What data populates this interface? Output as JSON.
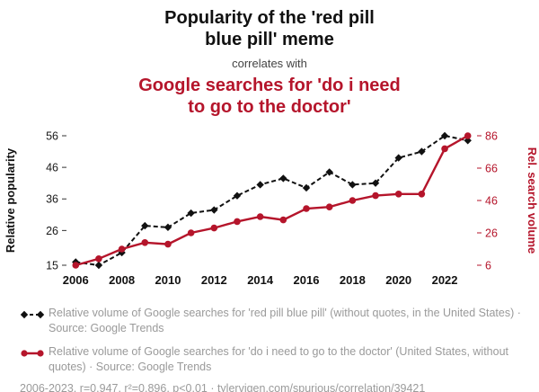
{
  "header": {
    "title": "Popularity of the 'red pill blue pill' meme",
    "subtitle": "correlates with",
    "title2": "Google searches for 'do i need to go to the doctor'"
  },
  "chart_data": {
    "type": "line",
    "x": [
      2006,
      2007,
      2008,
      2009,
      2010,
      2011,
      2012,
      2013,
      2014,
      2015,
      2016,
      2017,
      2018,
      2019,
      2020,
      2021,
      2022,
      2023
    ],
    "x_ticks": [
      2006,
      2008,
      2010,
      2012,
      2014,
      2016,
      2018,
      2020,
      2022
    ],
    "left_axis": {
      "label": "Relative popularity",
      "ticks": [
        15,
        26,
        36,
        46,
        56
      ],
      "range": [
        15,
        56
      ]
    },
    "right_axis": {
      "label": "Rel. search volume",
      "ticks": [
        6,
        26,
        46,
        66,
        86
      ],
      "range": [
        6,
        86
      ]
    },
    "grid": false,
    "legend_position": "bottom",
    "series": [
      {
        "name": "red pill blue pill",
        "axis": "left",
        "color": "#111111",
        "style": "dashed",
        "marker": "diamond",
        "values": [
          16,
          15,
          19,
          27.5,
          27,
          31.5,
          32.5,
          37,
          40.5,
          42.5,
          39.5,
          44.5,
          40.5,
          41,
          49,
          51,
          56,
          54.5
        ]
      },
      {
        "name": "do i need to go to the doctor",
        "axis": "right",
        "color": "#b5152b",
        "style": "solid",
        "marker": "circle",
        "values": [
          6,
          10,
          16,
          20,
          19,
          26,
          29,
          33,
          36,
          34,
          41,
          42,
          46,
          49,
          50,
          50,
          78,
          86
        ]
      }
    ]
  },
  "legend": [
    {
      "text": "Relative volume of Google searches for 'red pill blue pill' (without quotes, in the United States) · Source: Google Trends"
    },
    {
      "text": "Relative volume of Google searches for 'do i need to go to the doctor' (United States, without quotes) · Source: Google Trends"
    }
  ],
  "footer": "2006-2023, r=0.947, r²=0.896, p<0.01 · tylervigen.com/spurious/correlation/39421",
  "colors": {
    "black_series": "#111111",
    "red_series": "#b5152b",
    "legend_gray": "#9a9a9a"
  }
}
